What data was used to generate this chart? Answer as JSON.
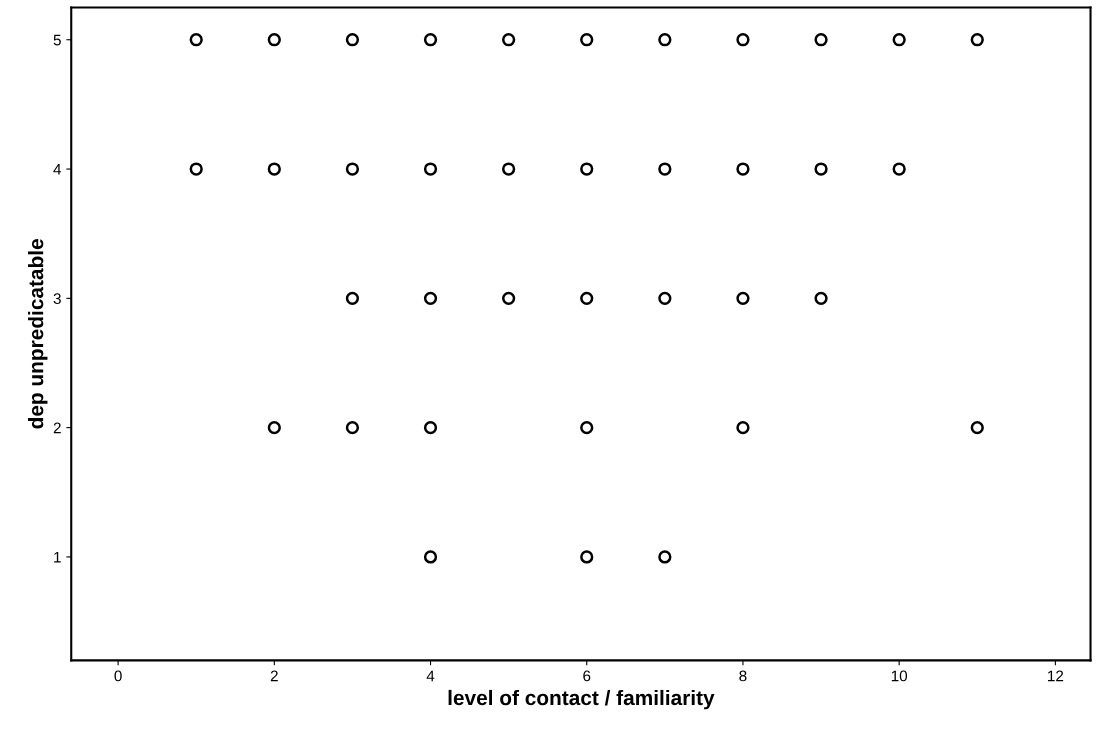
{
  "chart_data": {
    "type": "scatter",
    "xlabel": "level of contact / familiarity",
    "ylabel": "dep unpredicatable",
    "x": [
      1,
      2,
      3,
      4,
      5,
      6,
      7,
      8,
      9,
      10,
      11,
      1,
      2,
      3,
      4,
      5,
      6,
      7,
      8,
      9,
      10,
      3,
      4,
      5,
      6,
      7,
      8,
      9,
      2,
      3,
      4,
      6,
      8,
      11,
      4,
      6,
      7
    ],
    "values": [
      5,
      5,
      5,
      5,
      5,
      5,
      5,
      5,
      5,
      5,
      5,
      4,
      4,
      4,
      4,
      4,
      4,
      4,
      4,
      4,
      4,
      3,
      3,
      3,
      3,
      3,
      3,
      3,
      2,
      2,
      2,
      2,
      2,
      2,
      1,
      1,
      1
    ],
    "color": "#000000",
    "marker": "circle",
    "xlim": [
      -0.6,
      12.45
    ],
    "ylim": [
      0.2,
      5.25
    ],
    "xticks": [
      0,
      2,
      4,
      6,
      8,
      10,
      12
    ],
    "yticks": [
      1,
      2,
      3,
      4,
      5
    ],
    "grid": false
  }
}
